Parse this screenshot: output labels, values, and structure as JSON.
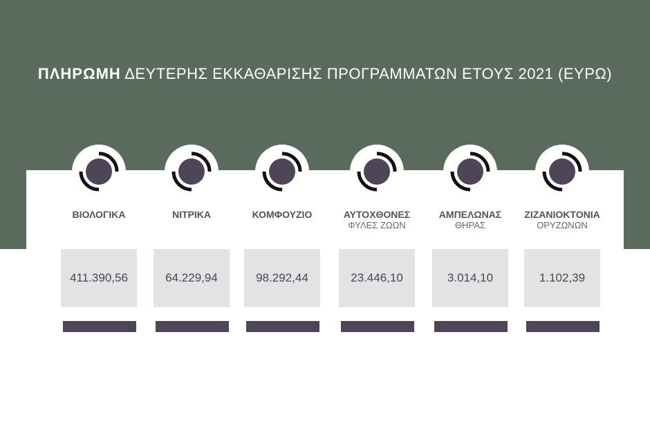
{
  "header": {
    "title_strong": "ΠΛΗΡΩΜΗ",
    "title_rest": "ΔΕΥΤΕΡΗΣ ΕΚΚΑΘΑΡΙΣΗΣ ΠΡΟΓΡΑΜΜΑΤΩΝ ΕΤΟΥΣ 2021 (ΕΥΡΩ)"
  },
  "colors": {
    "banner": "#5a6b5e",
    "accent_purple": "#4e4559",
    "value_box": "#e3e3e3",
    "label_green": "#4a5a4e"
  },
  "chart_data": {
    "type": "table",
    "title": "ΠΛΗΡΩΜΗ ΔΕΥΤΕΡΗΣ ΕΚΚΑΘΑΡΙΣΗΣ ΠΡΟΓΡΑΜΜΑΤΩΝ ΕΤΟΥΣ 2021 (ΕΥΡΩ)",
    "categories": [
      {
        "label": "ΒΙΟΛΟΓΙΚΑ",
        "sublabel": "",
        "value_text": "411.390,56",
        "value": 411390.56
      },
      {
        "label": "ΝΙΤΡΙΚΑ",
        "sublabel": "",
        "value_text": "64.229,94",
        "value": 64229.94
      },
      {
        "label": "ΚΟΜΦΟΥΖΙΟ",
        "sublabel": "",
        "value_text": "98.292,44",
        "value": 98292.44
      },
      {
        "label": "ΑΥΤΟΧΘΟΝΕΣ",
        "sublabel": "ΦΥΛΕΣ ΖΩΩΝ",
        "value_text": "23.446,10",
        "value": 23446.1
      },
      {
        "label": "ΑΜΠΕΛΩΝΑΣ",
        "sublabel": "ΘΗΡΑΣ",
        "value_text": "3.014,10",
        "value": 3014.1
      },
      {
        "label": "ΖΙΖΑΝΙΟΚΤΟΝΙΑ",
        "sublabel": "ΟΡΥΖΩΝΩΝ",
        "value_text": "1.102,39",
        "value": 1102.39
      }
    ]
  }
}
